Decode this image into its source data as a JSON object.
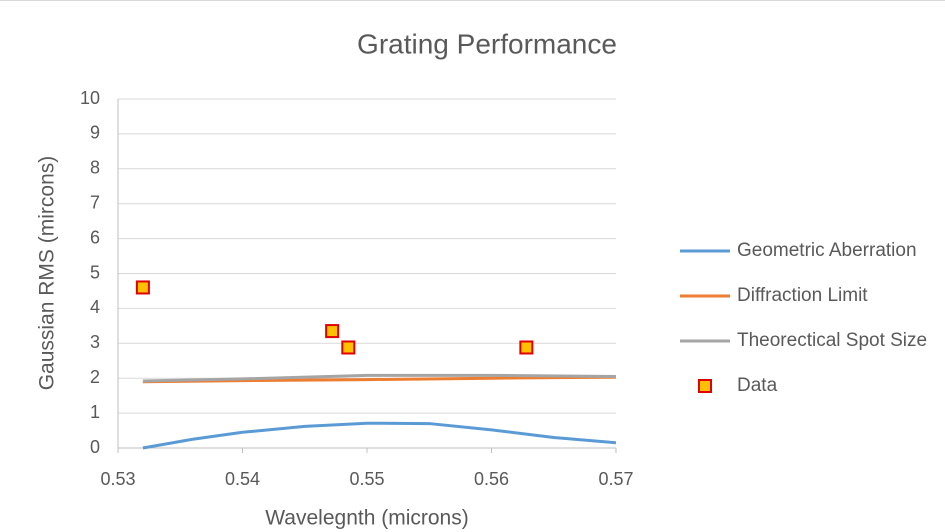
{
  "chart_data": {
    "type": "scatter",
    "title": "Grating Performance",
    "x_label": "Wavelegnth (microns)",
    "y_label": "Gaussian RMS (mircons)",
    "xlim": [
      0.53,
      0.57
    ],
    "xticks": [
      0.53,
      0.54,
      0.55,
      0.56,
      0.57
    ],
    "ylim": [
      0,
      10
    ],
    "yticks": [
      0,
      1,
      2,
      3,
      4,
      5,
      6,
      7,
      8,
      9,
      10
    ],
    "grid": true,
    "legend": "right",
    "series": [
      {
        "name": "Geometric Aberration",
        "color": "#5b9bd5",
        "mode": "line",
        "x": [
          0.532,
          0.536,
          0.54,
          0.545,
          0.55,
          0.555,
          0.56,
          0.565,
          0.57
        ],
        "values": [
          0.0,
          0.25,
          0.45,
          0.62,
          0.71,
          0.7,
          0.52,
          0.3,
          0.15
        ]
      },
      {
        "name": "Diffraction Limit",
        "color": "#ed7d31",
        "mode": "line",
        "x": [
          0.532,
          0.54,
          0.55,
          0.56,
          0.57
        ],
        "values": [
          1.9,
          1.93,
          1.96,
          2.0,
          2.03
        ]
      },
      {
        "name": "Theorectical Spot Size",
        "color": "#a5a5a5",
        "mode": "line",
        "x": [
          0.532,
          0.54,
          0.55,
          0.56,
          0.57
        ],
        "values": [
          1.92,
          1.98,
          2.08,
          2.08,
          2.05
        ]
      },
      {
        "name": "Data",
        "color": "#ffc000",
        "edge_color": "#e00000",
        "mode": "marker",
        "x": [
          0.532,
          0.5472,
          0.5485,
          0.5628
        ],
        "values": [
          4.6,
          3.35,
          2.88,
          2.88
        ]
      }
    ]
  }
}
